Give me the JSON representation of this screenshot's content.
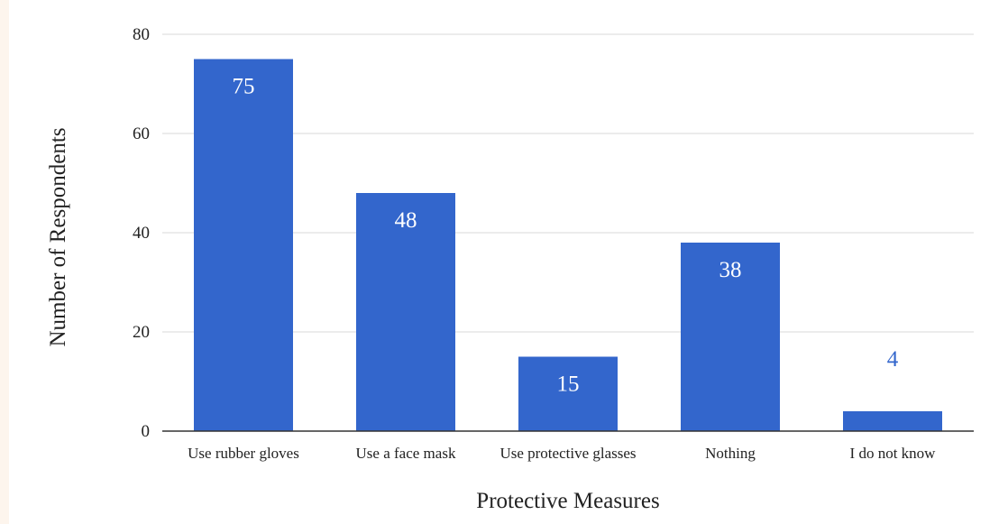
{
  "chart_data": {
    "type": "bar",
    "title": "",
    "xlabel": "Protective Measures",
    "ylabel": "Number of Respondents",
    "categories": [
      "Use rubber gloves",
      "Use a face mask",
      "Use protective glasses",
      "Nothing",
      "I do not know"
    ],
    "values": [
      75,
      48,
      15,
      38,
      4
    ],
    "ylim": [
      0,
      80
    ],
    "yticks": [
      0,
      20,
      40,
      60,
      80
    ],
    "grid": true,
    "legend": "none",
    "colors": {
      "bar": "#3366cc",
      "label_inside": "#ffffff",
      "label_outside": "#3366cc",
      "gridline": "#d9d9d9",
      "axis": "#333333",
      "background": "#ffffff",
      "page_background": "#fdf5ed"
    }
  }
}
